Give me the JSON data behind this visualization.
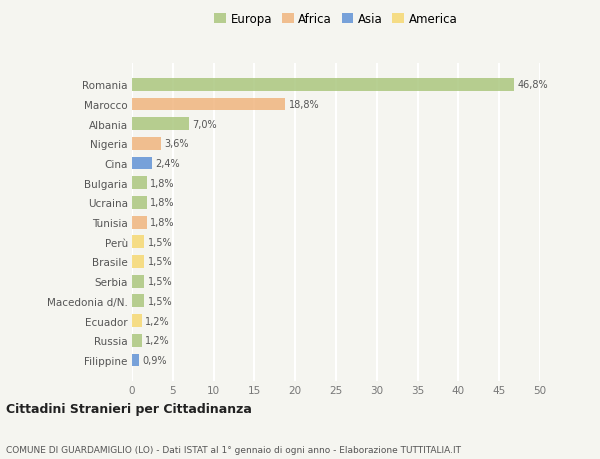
{
  "countries": [
    "Romania",
    "Marocco",
    "Albania",
    "Nigeria",
    "Cina",
    "Bulgaria",
    "Ucraina",
    "Tunisia",
    "Perù",
    "Brasile",
    "Serbia",
    "Macedonia d/N.",
    "Ecuador",
    "Russia",
    "Filippine"
  ],
  "values": [
    46.8,
    18.8,
    7.0,
    3.6,
    2.4,
    1.8,
    1.8,
    1.8,
    1.5,
    1.5,
    1.5,
    1.5,
    1.2,
    1.2,
    0.9
  ],
  "labels": [
    "46,8%",
    "18,8%",
    "7,0%",
    "3,6%",
    "2,4%",
    "1,8%",
    "1,8%",
    "1,8%",
    "1,5%",
    "1,5%",
    "1,5%",
    "1,5%",
    "1,2%",
    "1,2%",
    "0,9%"
  ],
  "continent": [
    "Europa",
    "Africa",
    "Europa",
    "Africa",
    "Asia",
    "Europa",
    "Europa",
    "Africa",
    "America",
    "America",
    "Europa",
    "Europa",
    "America",
    "Europa",
    "Asia"
  ],
  "colors": {
    "Europa": "#a8c57a",
    "Africa": "#f0b27a",
    "Asia": "#5b8fd4",
    "America": "#f5d76e"
  },
  "bg_color": "#f5f5f0",
  "grid_color": "#ffffff",
  "xlim": [
    0,
    50
  ],
  "xticks": [
    0,
    5,
    10,
    15,
    20,
    25,
    30,
    35,
    40,
    45,
    50
  ],
  "title": "Cittadini Stranieri per Cittadinanza",
  "subtitle": "COMUNE DI GUARDAMIGLIO (LO) - Dati ISTAT al 1° gennaio di ogni anno - Elaborazione TUTTITALIA.IT",
  "legend_order": [
    "Europa",
    "Africa",
    "Asia",
    "America"
  ]
}
